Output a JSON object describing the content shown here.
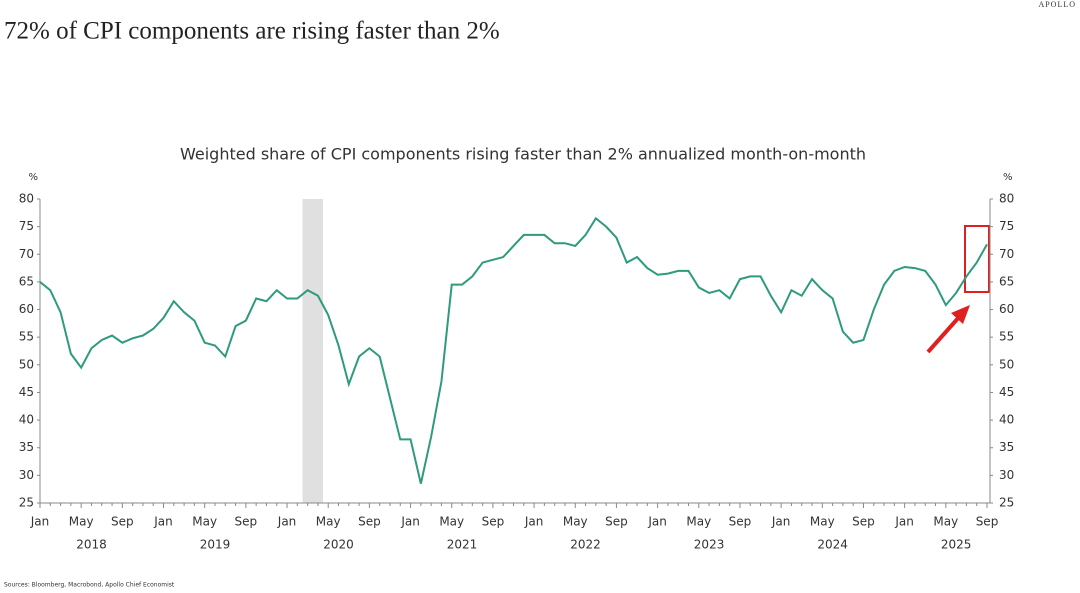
{
  "brand": "APOLLO",
  "chart_data": {
    "type": "line",
    "title": "72% of CPI components are rising faster than 2%",
    "subtitle": "Weighted share of CPI components rising faster than 2% annualized month-on-month",
    "ylabel": "%",
    "y2label": "%",
    "source": "Sources: Bloomberg, Macrobond, Apollo Chief Economist",
    "categories": [
      "Jan",
      null,
      null,
      null,
      "May",
      null,
      null,
      null,
      "Sep",
      null,
      null,
      null,
      "Jan",
      null,
      null,
      null,
      "May",
      null,
      null,
      null,
      "Sep",
      null,
      null,
      null,
      "Jan",
      null,
      null,
      null,
      "May",
      null,
      null,
      null,
      "Sep",
      null,
      null,
      null,
      "Jan",
      null,
      null,
      null,
      "May",
      null,
      null,
      null,
      "Sep",
      null,
      null,
      null,
      "Jan",
      null,
      null,
      null,
      "May",
      null,
      null,
      null,
      "Sep",
      null,
      null,
      null,
      "Jan",
      null,
      null,
      null,
      "May",
      null,
      null,
      null,
      "Sep",
      null,
      null,
      null,
      "Jan",
      null,
      null,
      null,
      "May",
      null,
      null,
      null,
      "Sep",
      null,
      null,
      null,
      "Jan",
      null,
      null,
      null,
      "May",
      null,
      null,
      null,
      "Sep"
    ],
    "years": [
      "2018",
      "2019",
      "2020",
      "2021",
      "2022",
      "2023",
      "2024",
      "2025"
    ],
    "shaded": [
      25.5,
      27.5
    ],
    "series": [
      {
        "name": "Weighted share",
        "color": "#2e9a7e",
        "values": [
          65,
          63.5,
          59.5,
          52,
          49.5,
          53,
          54.5,
          55.3,
          54,
          54.8,
          55.3,
          56.5,
          58.5,
          61.5,
          59.5,
          58,
          54,
          53.5,
          51.5,
          57,
          58,
          62,
          61.5,
          63.5,
          62,
          62,
          63.5,
          62.5,
          59,
          53.5,
          46.5,
          51.5,
          53,
          51.5,
          44,
          36.5,
          36.5,
          28.5,
          37,
          47,
          64.5,
          64.5,
          66,
          68.5,
          69,
          69.5,
          71.5,
          73.5,
          73.5,
          73.5,
          72,
          72,
          71.5,
          73.5,
          76.5,
          75,
          73,
          68.5,
          69.5,
          67.5,
          66.3,
          66.5,
          67,
          67,
          64,
          63,
          63.5,
          62,
          65.5,
          66,
          66,
          62.5,
          59.5,
          63.5,
          62.5,
          65.5,
          63.5,
          62,
          56,
          54,
          54.5,
          60,
          64.5,
          67,
          67.7,
          67.5,
          67,
          64.5,
          60.8,
          63,
          66,
          68.5,
          71.8
        ]
      }
    ],
    "ylim": [
      25,
      80
    ],
    "yticks": [
      25,
      30,
      35,
      40,
      45,
      50,
      55,
      60,
      65,
      70,
      75,
      80
    ],
    "y2lim": [
      25,
      80
    ],
    "y2ticks": [
      25,
      30,
      35,
      40,
      45,
      50,
      55,
      60,
      65,
      70,
      75,
      80
    ]
  }
}
